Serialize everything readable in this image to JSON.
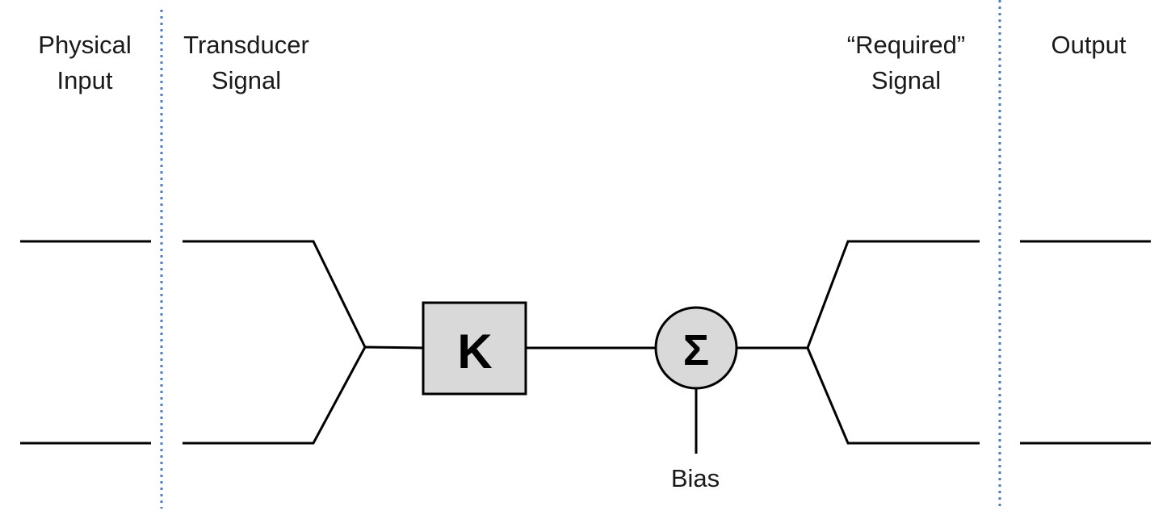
{
  "columns": [
    {
      "line1": "Physical",
      "line2": "Input"
    },
    {
      "line1": "Transducer",
      "line2": "Signal"
    },
    {
      "line1": "“Required”",
      "line2": "Signal"
    },
    {
      "line1": "Output",
      "line2": ""
    }
  ],
  "blocks": {
    "gain_symbol": "K",
    "sum_symbol": "Σ",
    "bias_label": "Bias"
  },
  "colors": {
    "divider": "#4a7ebb",
    "line": "#000000",
    "block_fill": "#d9d9d9"
  }
}
